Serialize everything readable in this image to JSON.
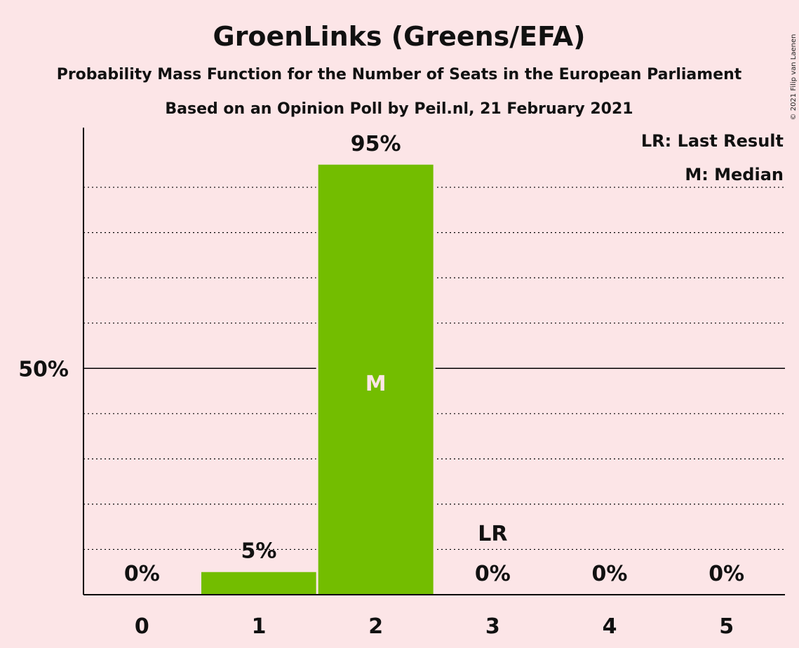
{
  "title": "GroenLinks (Greens/EFA)",
  "subtitle": "Probability Mass Function for the Number of Seats in the European Parliament",
  "subtitle2": "Based on an Opinion Poll by Peil.nl, 21 February 2021",
  "copyright": "© 2021 Filip van Laenen",
  "legend": {
    "last_result": "LR: Last Result",
    "median": "M: Median"
  },
  "colors": {
    "background": "#FCE5E7",
    "bar": "#73BD00",
    "text": "#111111",
    "median_text": "#FCE5E7"
  },
  "chart_data": {
    "type": "bar",
    "categories": [
      "0",
      "1",
      "2",
      "3",
      "4",
      "5"
    ],
    "values": [
      0,
      5,
      95,
      0,
      0,
      0
    ],
    "data_labels": [
      "0%",
      "5%",
      "95%",
      "0%",
      "0%",
      "0%"
    ],
    "y_ticks": [
      {
        "value": 50,
        "label": "50%"
      }
    ],
    "ylim": [
      0,
      100
    ],
    "grid": "dotted every 10%, solid at 50%",
    "median_category": "2",
    "median_marker": "M",
    "last_result_category": "3",
    "last_result_marker": "LR",
    "legend_position": "top-right"
  }
}
